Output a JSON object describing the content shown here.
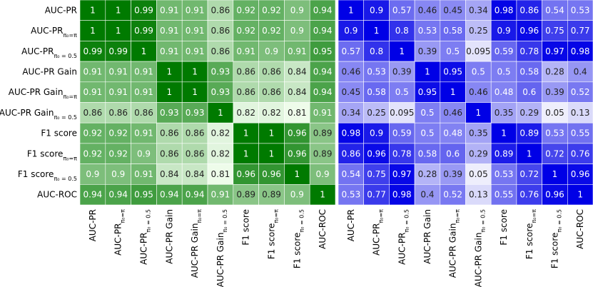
{
  "chart_data": [
    {
      "type": "heatmap",
      "low_color": "#eefcea",
      "high_color": "#007a00",
      "x_categories": [
        {
          "text": "AUC-PR"
        },
        {
          "text": "AUC-PR",
          "sub": "π₀=π"
        },
        {
          "text": "AUC-PR",
          "sub": "π₀ = 0.5"
        },
        {
          "text": "AUC-PR Gain"
        },
        {
          "text": "AUC-PR Gain",
          "sub": "π₀=π"
        },
        {
          "text": "AUC-PR Gain",
          "sub": "π₀ = 0.5"
        },
        {
          "text": "F1 score"
        },
        {
          "text": "F1 score",
          "sub": "π₀=π"
        },
        {
          "text": "F1 score",
          "sub": "π₀ = 0.5"
        },
        {
          "text": "AUC-ROC"
        }
      ],
      "y_categories": [
        {
          "text": "AUC-PR"
        },
        {
          "text": "AUC-PR",
          "sub": "π₀=π"
        },
        {
          "text": "AUC-PR",
          "sub": "π₀ = 0.5"
        },
        {
          "text": "AUC-PR Gain"
        },
        {
          "text": "AUC-PR Gain",
          "sub": "π₀=π"
        },
        {
          "text": "AUC-PR Gain",
          "sub": "π₀ = 0.5"
        },
        {
          "text": "F1 score"
        },
        {
          "text": "F1 score",
          "sub": "π₀=π"
        },
        {
          "text": "F1 score",
          "sub": "π₀ = 0.5"
        },
        {
          "text": "AUC-ROC"
        }
      ],
      "values": [
        [
          1,
          1,
          0.99,
          0.91,
          0.91,
          0.86,
          0.92,
          0.92,
          0.9,
          0.94
        ],
        [
          1,
          1,
          0.99,
          0.91,
          0.91,
          0.86,
          0.92,
          0.92,
          0.9,
          0.94
        ],
        [
          0.99,
          0.99,
          1,
          0.91,
          0.91,
          0.86,
          0.91,
          0.9,
          0.91,
          0.95
        ],
        [
          0.91,
          0.91,
          0.91,
          1,
          1,
          0.93,
          0.86,
          0.86,
          0.84,
          0.94
        ],
        [
          0.91,
          0.91,
          0.91,
          1,
          1,
          0.93,
          0.86,
          0.86,
          0.84,
          0.94
        ],
        [
          0.86,
          0.86,
          0.86,
          0.93,
          0.93,
          1,
          0.82,
          0.82,
          0.81,
          0.91
        ],
        [
          0.92,
          0.92,
          0.91,
          0.86,
          0.86,
          0.82,
          1,
          1,
          0.96,
          0.89
        ],
        [
          0.92,
          0.92,
          0.9,
          0.86,
          0.86,
          0.82,
          1,
          1,
          0.96,
          0.89
        ],
        [
          0.9,
          0.9,
          0.91,
          0.84,
          0.84,
          0.81,
          0.96,
          0.96,
          1,
          0.9
        ],
        [
          0.94,
          0.94,
          0.95,
          0.94,
          0.94,
          0.91,
          0.89,
          0.89,
          0.9,
          1
        ]
      ]
    },
    {
      "type": "heatmap",
      "low_color": "#eeeefc",
      "high_color": "#0000e6",
      "x_categories": [
        {
          "text": "AUC-PR"
        },
        {
          "text": "AUC-PR",
          "sub": "π₀=π"
        },
        {
          "text": "AUC-PR",
          "sub": "π₀ = 0.5"
        },
        {
          "text": "AUC-PR Gain"
        },
        {
          "text": "AUC-PR Gain",
          "sub": "π₀=π"
        },
        {
          "text": "AUC-PR Gain",
          "sub": "π₀ = 0.5"
        },
        {
          "text": "F1 score"
        },
        {
          "text": "F1 score",
          "sub": "π₀=π"
        },
        {
          "text": "F1 score",
          "sub": "π₀ = 0.5"
        },
        {
          "text": "AUC-ROC"
        }
      ],
      "values": [
        [
          1,
          0.9,
          0.57,
          0.46,
          0.45,
          0.34,
          0.98,
          0.86,
          0.54,
          0.53
        ],
        [
          0.9,
          1,
          0.8,
          0.53,
          0.58,
          0.25,
          0.9,
          0.96,
          0.75,
          0.77
        ],
        [
          0.57,
          0.8,
          1,
          0.39,
          0.5,
          0.095,
          0.59,
          0.78,
          0.97,
          0.98
        ],
        [
          0.46,
          0.53,
          0.39,
          1,
          0.95,
          0.5,
          0.5,
          0.58,
          0.28,
          0.4
        ],
        [
          0.45,
          0.58,
          0.5,
          0.95,
          1,
          0.46,
          0.48,
          0.6,
          0.39,
          0.52
        ],
        [
          0.34,
          0.25,
          0.095,
          0.5,
          0.46,
          1,
          0.35,
          0.29,
          0.05,
          0.13
        ],
        [
          0.98,
          0.9,
          0.59,
          0.5,
          0.48,
          0.35,
          1,
          0.89,
          0.53,
          0.55
        ],
        [
          0.86,
          0.96,
          0.78,
          0.58,
          0.6,
          0.29,
          0.89,
          1,
          0.72,
          0.76
        ],
        [
          0.54,
          0.75,
          0.97,
          0.28,
          0.39,
          0.05,
          0.53,
          0.72,
          1,
          0.96
        ],
        [
          0.53,
          0.77,
          0.98,
          0.4,
          0.52,
          0.13,
          0.55,
          0.76,
          0.96,
          1
        ]
      ]
    }
  ]
}
